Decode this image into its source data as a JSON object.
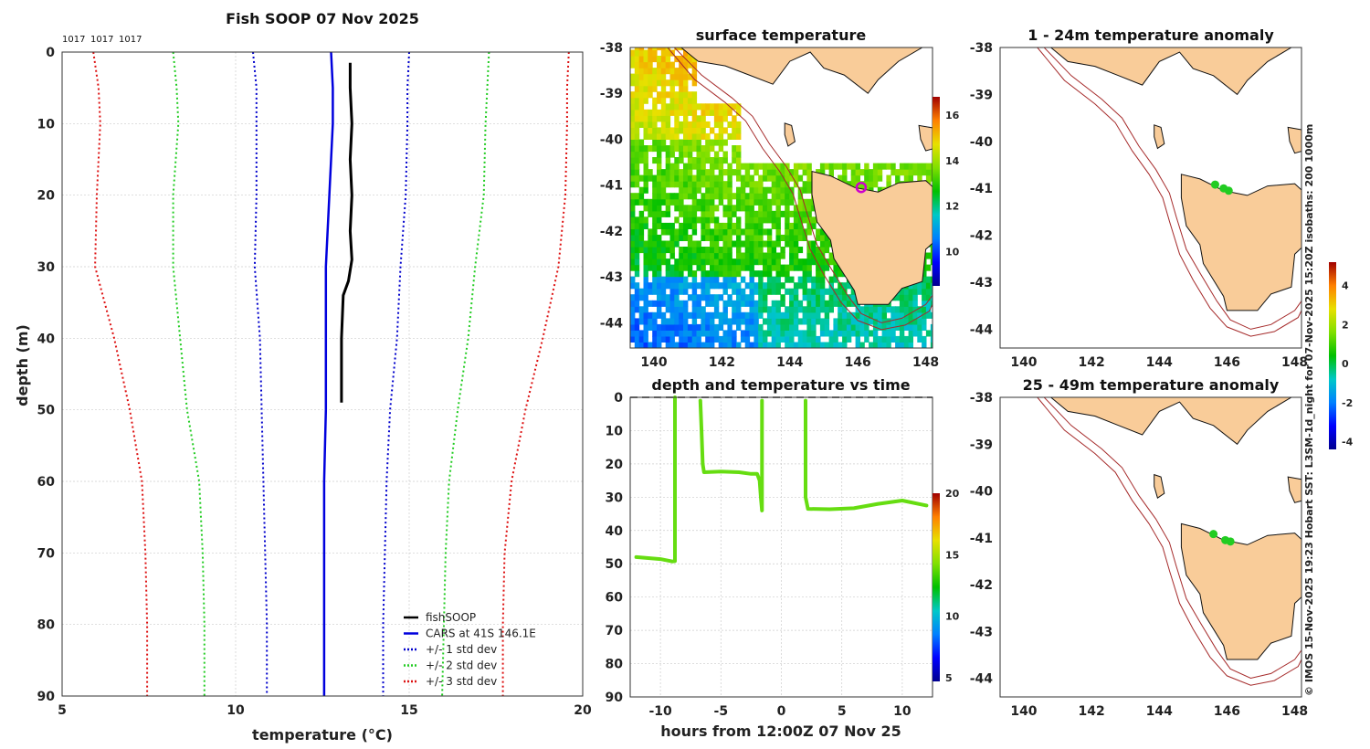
{
  "colors": {
    "land": "#f9cc99",
    "coast": "#111",
    "bathy": "#a52a2a",
    "cars": "#0000dd",
    "fish": "#000",
    "std1": "#0000cc",
    "std2": "#22cc22",
    "std3": "#dd1111",
    "track": "#66dd11",
    "marker": "#cc00cc",
    "anom": "#22cc22"
  },
  "chart_data": [
    {
      "id": "profile",
      "type": "line",
      "title": "Fish SOOP 07 Nov 2025",
      "header_labels": [
        "1017",
        "1017",
        "1017"
      ],
      "xlabel": "temperature (°C)",
      "ylabel": "depth (m)",
      "xlim": [
        5,
        20
      ],
      "ylim": [
        90,
        0
      ],
      "xticks": [
        5,
        10,
        15,
        20
      ],
      "yticks": [
        0,
        10,
        20,
        30,
        40,
        50,
        60,
        70,
        80,
        90
      ],
      "series": [
        {
          "name": "fishSOOP",
          "style": "solid",
          "color": "#000",
          "width": 3,
          "points": [
            [
              13.3,
              1.5
            ],
            [
              13.3,
              5
            ],
            [
              13.35,
              10
            ],
            [
              13.3,
              15
            ],
            [
              13.35,
              20
            ],
            [
              13.3,
              25
            ],
            [
              13.35,
              29
            ],
            [
              13.25,
              32
            ],
            [
              13.1,
              34
            ],
            [
              13.05,
              40
            ],
            [
              13.05,
              45
            ],
            [
              13.05,
              49
            ]
          ]
        },
        {
          "name": "CARS at 41S 146.1E",
          "style": "solid",
          "color": "#0000dd",
          "width": 2.5,
          "points": [
            [
              12.75,
              0
            ],
            [
              12.8,
              5
            ],
            [
              12.8,
              10
            ],
            [
              12.75,
              15
            ],
            [
              12.7,
              20
            ],
            [
              12.65,
              25
            ],
            [
              12.6,
              30
            ],
            [
              12.6,
              40
            ],
            [
              12.6,
              50
            ],
            [
              12.55,
              60
            ],
            [
              12.55,
              70
            ],
            [
              12.55,
              80
            ],
            [
              12.55,
              90
            ]
          ]
        },
        {
          "name": "CARS -1 std dev",
          "style": "dotted",
          "color": "#0000cc",
          "width": 2,
          "points": [
            [
              10.5,
              0
            ],
            [
              10.6,
              5
            ],
            [
              10.6,
              10
            ],
            [
              10.6,
              20
            ],
            [
              10.55,
              30
            ],
            [
              10.7,
              40
            ],
            [
              10.75,
              50
            ],
            [
              10.8,
              60
            ],
            [
              10.85,
              70
            ],
            [
              10.9,
              80
            ],
            [
              10.9,
              90
            ]
          ]
        },
        {
          "name": "CARS +1 std dev",
          "style": "dotted",
          "color": "#0000cc",
          "width": 2,
          "points": [
            [
              15.0,
              0
            ],
            [
              14.95,
              5
            ],
            [
              14.95,
              10
            ],
            [
              14.9,
              20
            ],
            [
              14.75,
              30
            ],
            [
              14.65,
              40
            ],
            [
              14.45,
              50
            ],
            [
              14.35,
              60
            ],
            [
              14.3,
              70
            ],
            [
              14.25,
              80
            ],
            [
              14.25,
              90
            ]
          ]
        },
        {
          "name": "CARS -2 std dev",
          "style": "dotted",
          "color": "#22cc22",
          "width": 2,
          "points": [
            [
              8.2,
              0
            ],
            [
              8.3,
              5
            ],
            [
              8.35,
              10
            ],
            [
              8.2,
              20
            ],
            [
              8.2,
              30
            ],
            [
              8.4,
              40
            ],
            [
              8.6,
              50
            ],
            [
              8.95,
              60
            ],
            [
              9.05,
              70
            ],
            [
              9.1,
              80
            ],
            [
              9.1,
              90
            ]
          ]
        },
        {
          "name": "CARS +2 std dev",
          "style": "dotted",
          "color": "#22cc22",
          "width": 2,
          "points": [
            [
              17.3,
              0
            ],
            [
              17.25,
              5
            ],
            [
              17.2,
              10
            ],
            [
              17.15,
              20
            ],
            [
              16.9,
              30
            ],
            [
              16.7,
              40
            ],
            [
              16.4,
              50
            ],
            [
              16.15,
              60
            ],
            [
              16.05,
              70
            ],
            [
              16.0,
              80
            ],
            [
              15.95,
              90
            ]
          ]
        },
        {
          "name": "CARS -3 std dev",
          "style": "dotted",
          "color": "#dd1111",
          "width": 2,
          "points": [
            [
              5.9,
              0
            ],
            [
              6.05,
              5
            ],
            [
              6.1,
              10
            ],
            [
              6.0,
              20
            ],
            [
              5.95,
              30
            ],
            [
              6.5,
              40
            ],
            [
              6.95,
              50
            ],
            [
              7.3,
              60
            ],
            [
              7.4,
              70
            ],
            [
              7.45,
              80
            ],
            [
              7.45,
              90
            ]
          ]
        },
        {
          "name": "CARS +3 std dev",
          "style": "dotted",
          "color": "#dd1111",
          "width": 2,
          "points": [
            [
              19.6,
              0
            ],
            [
              19.55,
              5
            ],
            [
              19.55,
              10
            ],
            [
              19.5,
              20
            ],
            [
              19.3,
              30
            ],
            [
              18.85,
              40
            ],
            [
              18.35,
              50
            ],
            [
              17.95,
              60
            ],
            [
              17.75,
              70
            ],
            [
              17.7,
              80
            ],
            [
              17.7,
              90
            ]
          ]
        }
      ],
      "legend": {
        "placement": "bottom-right",
        "items": [
          {
            "label": "fishSOOP",
            "color": "#000",
            "style": "solid"
          },
          {
            "label": "CARS at 41S 146.1E",
            "color": "#0000dd",
            "style": "solid"
          },
          {
            "label": "+/- 1 std dev",
            "color": "#0000cc",
            "style": "dotted"
          },
          {
            "label": "+/- 2 std dev",
            "color": "#22cc22",
            "style": "dotted"
          },
          {
            "label": "+/- 3 std dev",
            "color": "#dd1111",
            "style": "dotted"
          }
        ]
      }
    },
    {
      "id": "sst_map",
      "type": "heatmap",
      "title": "surface temperature",
      "xlim": [
        139.3,
        148.2
      ],
      "ylim": [
        -44.55,
        -38
      ],
      "xticks": [
        140,
        142,
        144,
        146,
        148
      ],
      "yticks": [
        -38,
        -39,
        -40,
        -41,
        -42,
        -43,
        -44
      ],
      "colorbar": {
        "min": 8.5,
        "max": 16.8,
        "ticks": [
          10,
          12,
          14,
          16
        ]
      },
      "marker": {
        "lon": 146.1,
        "lat": -41.05
      }
    },
    {
      "id": "time_depth",
      "type": "scatter",
      "title": "depth and temperature vs time",
      "xlabel": "hours from 12:00Z 07 Nov 25",
      "xlim": [
        -12.5,
        12.5
      ],
      "ylim": [
        90,
        0
      ],
      "xticks": [
        -10,
        -5,
        0,
        5,
        10
      ],
      "yticks": [
        0,
        10,
        20,
        30,
        40,
        50,
        60,
        70,
        80,
        90
      ],
      "colorbar": {
        "min": 4.7,
        "max": 20,
        "ticks": [
          5,
          10,
          15,
          20
        ]
      },
      "segments": [
        [
          [
            -12,
            48
          ],
          [
            -11,
            48.3
          ],
          [
            -10,
            48.6
          ],
          [
            -9,
            49.3
          ],
          [
            -8.8,
            49.2
          ],
          [
            -8.8,
            30
          ],
          [
            -8.8,
            10
          ],
          [
            -8.8,
            0
          ]
        ],
        [
          [
            -6.7,
            1
          ],
          [
            -6.6,
            10
          ],
          [
            -6.5,
            20
          ],
          [
            -6.4,
            22.5
          ],
          [
            -5,
            22.3
          ],
          [
            -3.5,
            22.5
          ],
          [
            -2.5,
            23
          ],
          [
            -2,
            23
          ],
          [
            -1.8,
            25
          ],
          [
            -1.7,
            30
          ],
          [
            -1.6,
            34
          ],
          [
            -1.6,
            20
          ],
          [
            -1.6,
            1
          ]
        ],
        [
          [
            2,
            1
          ],
          [
            2,
            15
          ],
          [
            2,
            30
          ],
          [
            2.2,
            33.5
          ],
          [
            4,
            33.6
          ],
          [
            6,
            33.3
          ],
          [
            8,
            32
          ],
          [
            10,
            31
          ],
          [
            12,
            32.5
          ]
        ]
      ]
    },
    {
      "id": "anom_upper",
      "type": "scatter",
      "title": "1 - 24m temperature anomaly",
      "xlim": [
        139.3,
        148.2
      ],
      "ylim": [
        -44.4,
        -38
      ],
      "xticks": [
        140,
        142,
        144,
        146,
        148
      ],
      "yticks": [
        -38,
        -39,
        -40,
        -41,
        -42,
        -43,
        -44
      ],
      "points": [
        {
          "lon": 145.65,
          "lat": -40.92
        },
        {
          "lon": 145.9,
          "lat": -41.0
        },
        {
          "lon": 146.05,
          "lat": -41.05
        }
      ]
    },
    {
      "id": "anom_lower",
      "type": "scatter",
      "title": "25 - 49m temperature anomaly",
      "xlim": [
        139.3,
        148.2
      ],
      "ylim": [
        -44.4,
        -38
      ],
      "xticks": [
        140,
        142,
        144,
        146,
        148
      ],
      "yticks": [
        -38,
        -39,
        -40,
        -41,
        -42,
        -43,
        -44
      ],
      "colorbar": {
        "min": -4.4,
        "max": 5.2,
        "ticks": [
          4,
          2,
          0,
          -2,
          -4
        ],
        "tick_labels": [
          "4",
          "2",
          "0",
          "-2",
          "-4"
        ]
      },
      "points": [
        {
          "lon": 145.6,
          "lat": -40.92
        },
        {
          "lon": 145.95,
          "lat": -41.05
        },
        {
          "lon": 146.1,
          "lat": -41.08
        }
      ]
    }
  ],
  "side_caption": "© IMOS 15-Nov-2025 19:23 Hobart SST: L3SM-1d_night for 07-Nov-2025 15:20Z isobaths: 200  1000m",
  "map_shapes": {
    "mainland": [
      [
        140.8,
        -38
      ],
      [
        141.3,
        -38.3
      ],
      [
        142.1,
        -38.4
      ],
      [
        142.8,
        -38.6
      ],
      [
        143.5,
        -38.8
      ],
      [
        144.0,
        -38.3
      ],
      [
        144.6,
        -38.1
      ],
      [
        145.0,
        -38.45
      ],
      [
        145.6,
        -38.6
      ],
      [
        146.3,
        -39.0
      ],
      [
        146.6,
        -38.7
      ],
      [
        147.2,
        -38.3
      ],
      [
        147.9,
        -38.0
      ],
      [
        148.2,
        -37.8
      ],
      [
        148.2,
        -37.9
      ],
      [
        140.8,
        -37.9
      ]
    ],
    "tasmania": [
      [
        144.65,
        -40.7
      ],
      [
        145.2,
        -40.8
      ],
      [
        145.9,
        -41.05
      ],
      [
        146.6,
        -41.15
      ],
      [
        147.2,
        -40.95
      ],
      [
        148.0,
        -40.9
      ],
      [
        148.3,
        -41.1
      ],
      [
        148.3,
        -42.2
      ],
      [
        148.0,
        -42.4
      ],
      [
        147.9,
        -43.1
      ],
      [
        147.3,
        -43.25
      ],
      [
        146.9,
        -43.6
      ],
      [
        146.0,
        -43.6
      ],
      [
        145.9,
        -43.3
      ],
      [
        145.3,
        -42.6
      ],
      [
        145.2,
        -42.2
      ],
      [
        144.8,
        -41.8
      ],
      [
        144.65,
        -41.2
      ]
    ],
    "king_island": [
      [
        143.85,
        -39.65
      ],
      [
        144.05,
        -39.7
      ],
      [
        144.15,
        -40.05
      ],
      [
        143.95,
        -40.15
      ],
      [
        143.85,
        -39.9
      ]
    ],
    "flinders": [
      [
        147.8,
        -39.7
      ],
      [
        148.2,
        -39.75
      ],
      [
        148.25,
        -40.2
      ],
      [
        148.0,
        -40.25
      ],
      [
        147.85,
        -40.0
      ]
    ],
    "iso200": [
      [
        140.6,
        -38
      ],
      [
        141.4,
        -38.6
      ],
      [
        142.3,
        -39.1
      ],
      [
        142.9,
        -39.5
      ],
      [
        143.4,
        -40.1
      ],
      [
        143.9,
        -40.6
      ],
      [
        144.3,
        -41.1
      ],
      [
        144.5,
        -41.6
      ],
      [
        144.8,
        -42.3
      ],
      [
        145.2,
        -42.8
      ],
      [
        145.7,
        -43.4
      ],
      [
        146.1,
        -43.8
      ],
      [
        146.7,
        -44.0
      ],
      [
        147.3,
        -43.9
      ],
      [
        148.0,
        -43.6
      ],
      [
        148.2,
        -43.4
      ]
    ],
    "iso1000": [
      [
        140.4,
        -38
      ],
      [
        141.2,
        -38.7
      ],
      [
        142.1,
        -39.2
      ],
      [
        142.7,
        -39.6
      ],
      [
        143.2,
        -40.2
      ],
      [
        143.7,
        -40.7
      ],
      [
        144.1,
        -41.2
      ],
      [
        144.3,
        -41.7
      ],
      [
        144.6,
        -42.4
      ],
      [
        145.0,
        -42.95
      ],
      [
        145.5,
        -43.55
      ],
      [
        146.0,
        -43.95
      ],
      [
        146.7,
        -44.15
      ],
      [
        147.4,
        -44.05
      ],
      [
        148.1,
        -43.75
      ],
      [
        148.2,
        -43.6
      ]
    ]
  }
}
